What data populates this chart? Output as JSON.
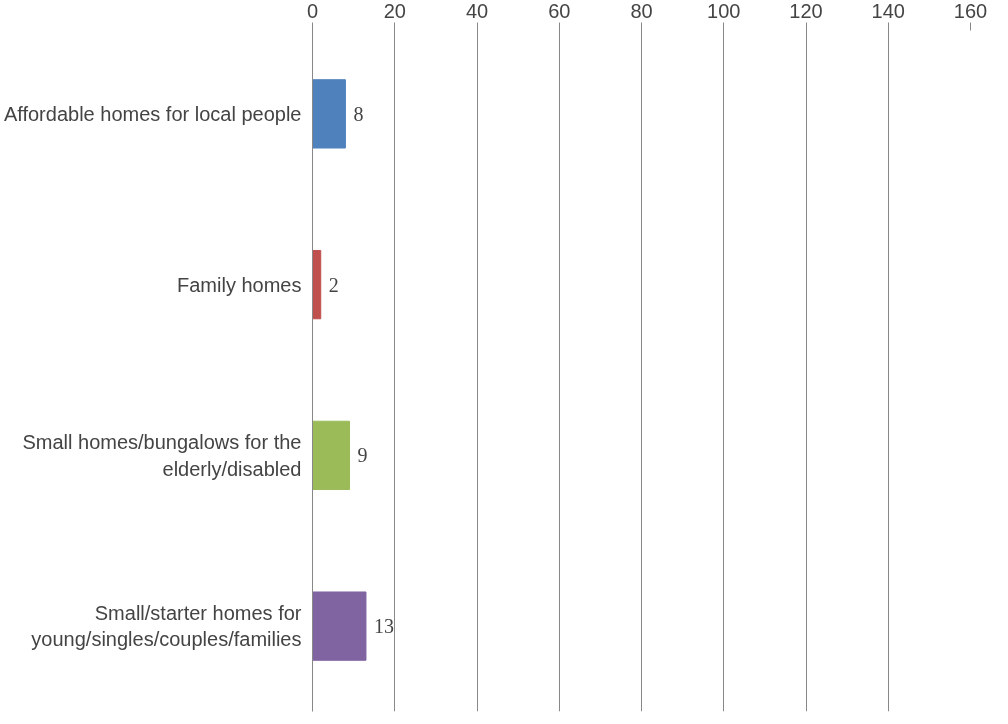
{
  "chart_data": {
    "type": "bar",
    "orientation": "horizontal",
    "categories": [
      "Affordable homes for local people",
      "Family homes",
      "Small homes/bungalows for the elderly/disabled",
      "Small/starter homes for young/singles/couples/families"
    ],
    "values": [
      8,
      2,
      9,
      13
    ],
    "colors": [
      "#4f81bd",
      "#c0504d",
      "#9bbb59",
      "#8064a2"
    ],
    "xlim": [
      0,
      160
    ],
    "xticks": [
      0,
      20,
      40,
      60,
      80,
      100,
      120,
      140,
      160
    ],
    "grid": "x",
    "data_labels": true
  }
}
